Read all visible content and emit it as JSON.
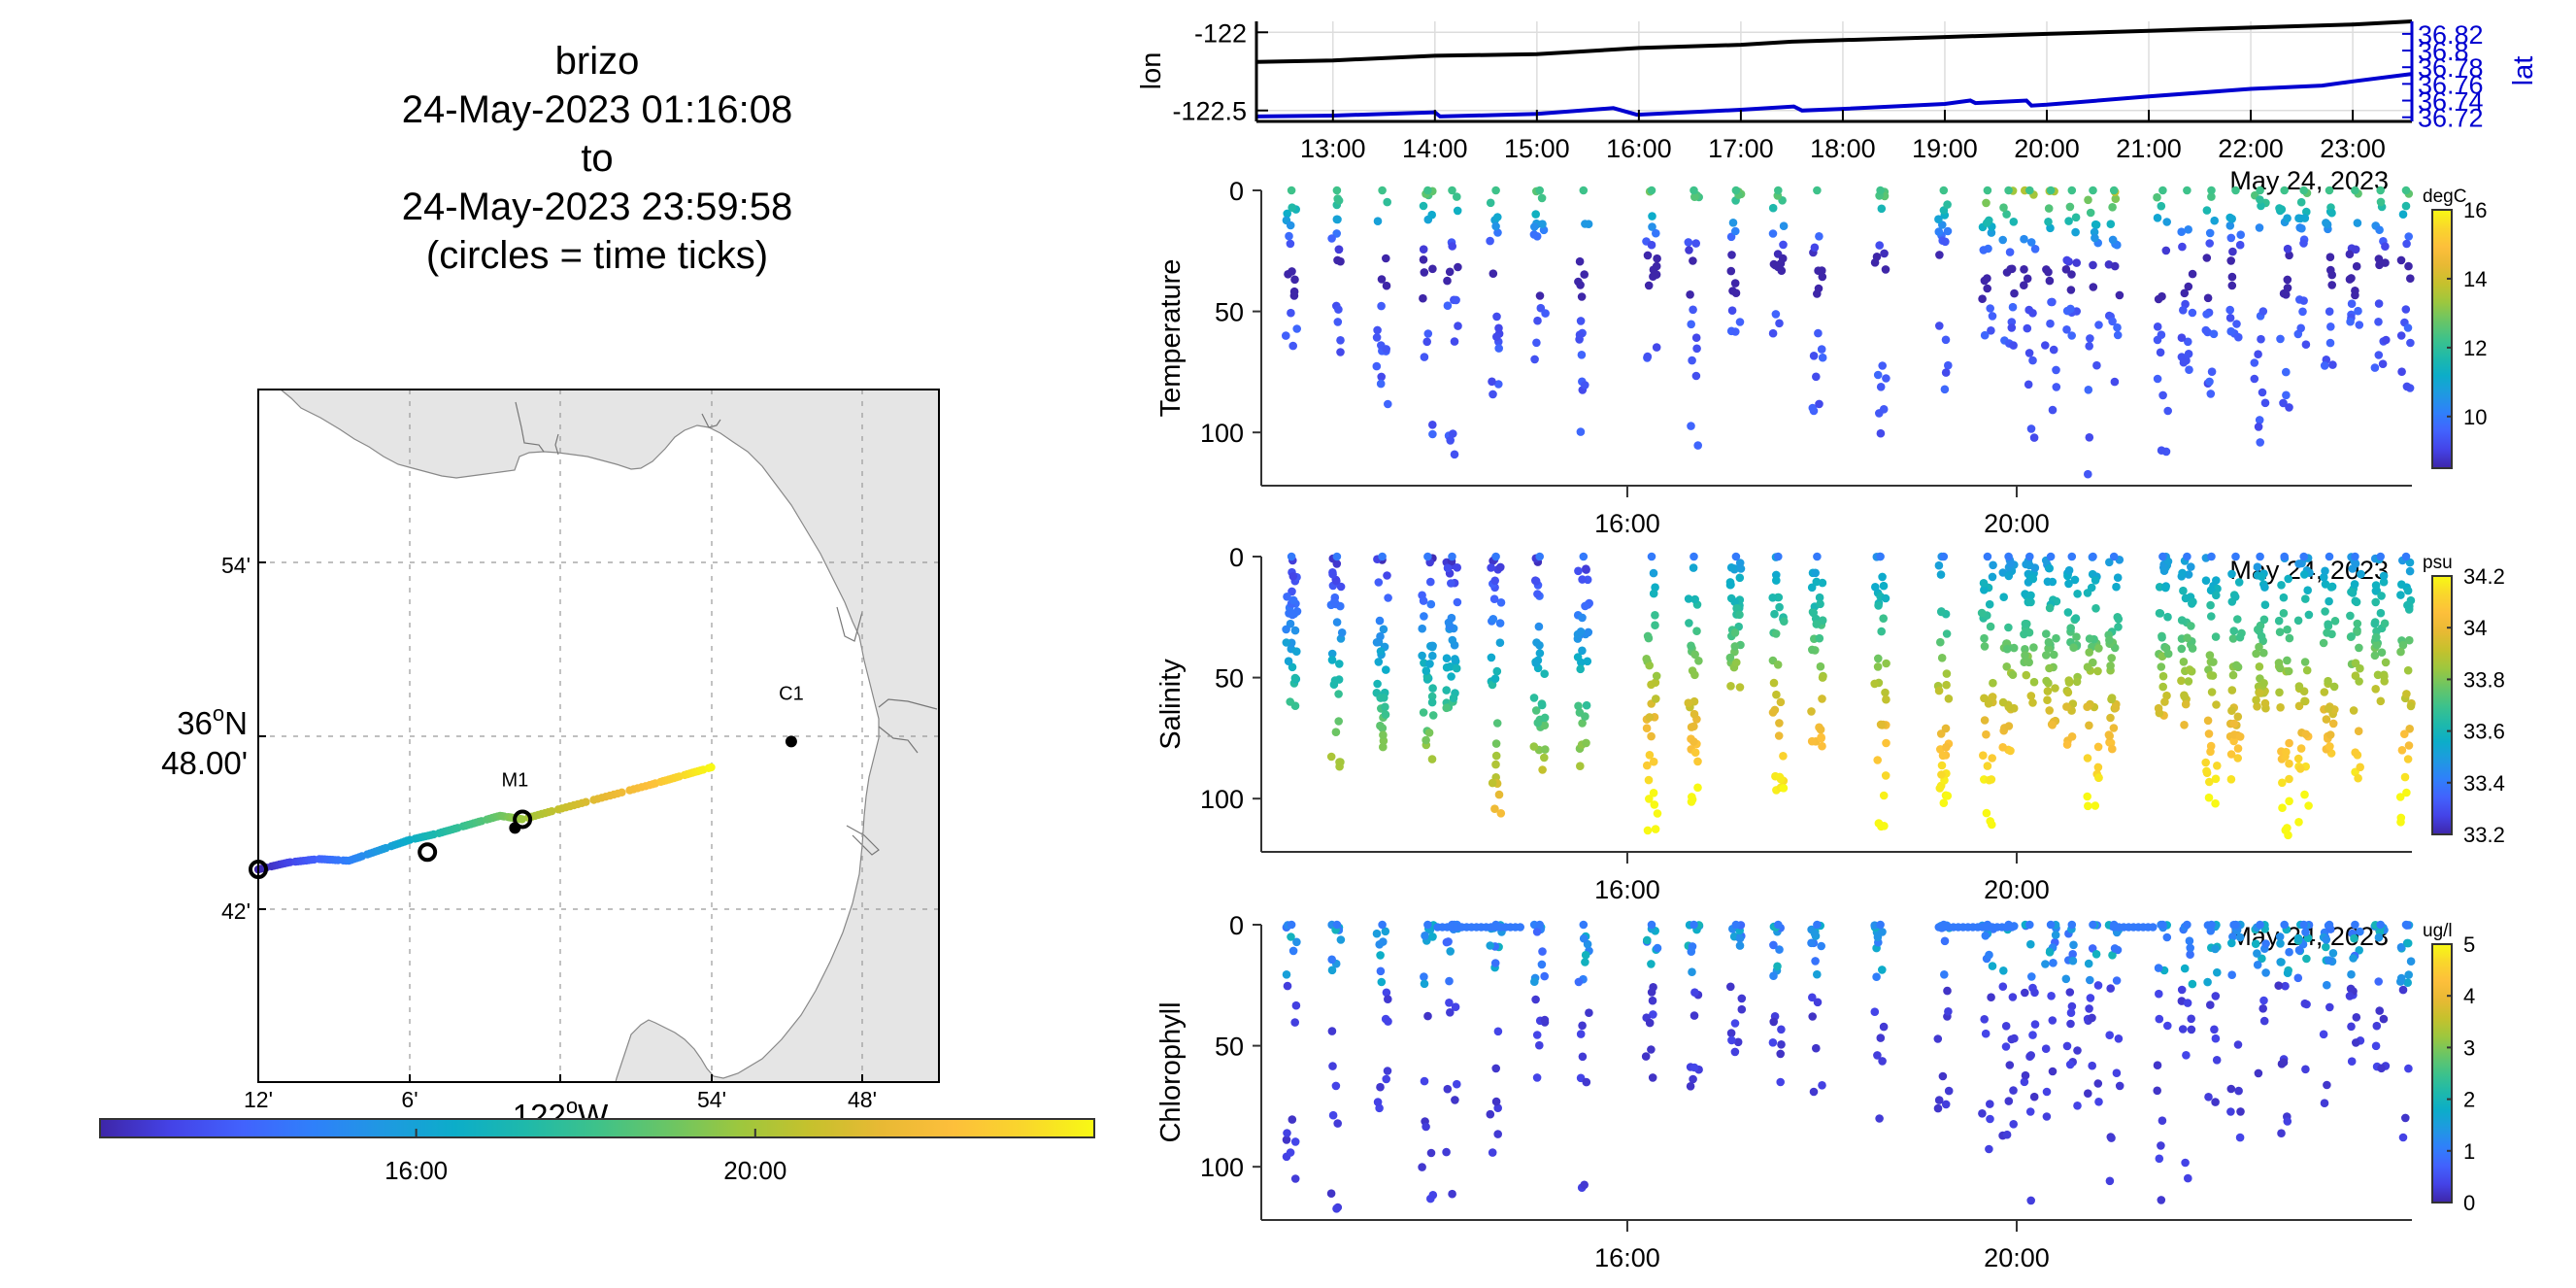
{
  "title": {
    "lines": [
      "brizo",
      "24-May-2023 01:16:08",
      "to",
      "24-May-2023 23:59:58",
      "(circles = time ticks)"
    ]
  },
  "colors": {
    "parula": [
      "#3e26a8",
      "#4443e7",
      "#4262fd",
      "#2f80fa",
      "#1f99e1",
      "#0cadc9",
      "#1fb9aa",
      "#3ec28a",
      "#6ac565",
      "#9dc73e",
      "#c6c12d",
      "#e8b934",
      "#fdbf3b",
      "#f9d62c",
      "#f8f914"
    ],
    "lon_line": "#000000",
    "lat_line": "#0000d0",
    "land": "#e5e5e5",
    "grid": "#aaaaaa"
  },
  "map": {
    "lon_ticks": [
      "12'",
      "6'",
      "54'",
      "48'"
    ],
    "lon_label_main": "122",
    "lon_label_sup": "o",
    "lon_label_suffix": "W",
    "lat_ticks": [
      "54'",
      "42'"
    ],
    "lat_label_main": "36",
    "lat_label_sup": "o",
    "lat_label_suffix": "N",
    "lat_label_sub": "48.00'",
    "stations": [
      {
        "name": "M1",
        "lon": -122.03,
        "lat": 36.747
      },
      {
        "name": "C1",
        "lon": -121.847,
        "lat": 36.797
      }
    ],
    "colorbar_ticks": [
      "16:00",
      "20:00"
    ],
    "colorbar_range_hours": [
      12.27,
      24.0
    ],
    "colorbar_tick_hours": [
      16,
      20
    ]
  },
  "chart_data": [
    {
      "type": "line",
      "title": "",
      "xlabel": "",
      "ylabel": "lon",
      "ylabel_right": "lat",
      "date_label": "May 24, 2023",
      "x_tick_labels": [
        "13:00",
        "14:00",
        "15:00",
        "16:00",
        "17:00",
        "18:00",
        "19:00",
        "20:00",
        "21:00",
        "22:00",
        "23:00"
      ],
      "x_range_hours": [
        12.25,
        23.58
      ],
      "ylim": [
        -122.57,
        -121.93
      ],
      "y_ticks": [
        -122,
        -122.5
      ],
      "y_tick_labels": [
        "-122",
        "-122.5"
      ],
      "ylim_right": [
        36.715,
        36.835
      ],
      "y_ticks_right": [
        36.72,
        36.74,
        36.76,
        36.78,
        36.8,
        36.82
      ],
      "y_tick_labels_right": [
        "36.72",
        "36.74",
        "36.76",
        "36.78",
        "36.8",
        "36.82"
      ],
      "grid": true,
      "series": [
        {
          "name": "lon",
          "axis": "left",
          "x": [
            12.25,
            13.0,
            14.0,
            15.0,
            15.75,
            16.0,
            17.0,
            17.5,
            18.0,
            19.0,
            20.0,
            21.0,
            21.5,
            22.0,
            23.0,
            23.58
          ],
          "y": [
            -122.19,
            -122.18,
            -122.15,
            -122.14,
            -122.11,
            -122.1,
            -122.08,
            -122.06,
            -122.05,
            -122.03,
            -122.01,
            -121.99,
            -121.98,
            -121.97,
            -121.95,
            -121.93
          ]
        },
        {
          "name": "lat",
          "axis": "right",
          "x": [
            12.25,
            13.0,
            14.0,
            14.05,
            15.0,
            15.75,
            15.98,
            17.0,
            17.52,
            17.6,
            18.0,
            19.0,
            19.25,
            19.3,
            19.8,
            19.85,
            20.0,
            21.0,
            22.0,
            22.7,
            23.0,
            23.58
          ],
          "y": [
            36.721,
            36.722,
            36.726,
            36.721,
            36.724,
            36.731,
            36.723,
            36.729,
            36.733,
            36.728,
            36.73,
            36.736,
            36.74,
            36.737,
            36.74,
            36.734,
            36.735,
            36.745,
            36.754,
            36.758,
            36.763,
            36.772
          ]
        }
      ]
    },
    {
      "type": "scatter",
      "name": "temperature",
      "ylabel": "Temperature",
      "units": "degC",
      "date_label": "May 24, 2023",
      "x_tick_labels": [
        "16:00",
        "20:00"
      ],
      "x_tick_hours": [
        16,
        20
      ],
      "x_range_hours": [
        12.24,
        24.06
      ],
      "ylim": [
        0,
        122
      ],
      "y_reversed": true,
      "y_ticks": [
        0,
        50,
        100
      ],
      "clim": [
        8.5,
        16
      ],
      "colorbar_ticks": [
        10,
        12,
        14,
        16
      ]
    },
    {
      "type": "scatter",
      "name": "salinity",
      "ylabel": "Salinity",
      "units": "psu",
      "date_label": "May 24, 2023",
      "x_tick_labels": [
        "16:00",
        "20:00"
      ],
      "x_tick_hours": [
        16,
        20
      ],
      "x_range_hours": [
        12.24,
        24.06
      ],
      "ylim": [
        0,
        122
      ],
      "y_reversed": true,
      "y_ticks": [
        0,
        50,
        100
      ],
      "clim": [
        33.2,
        34.2
      ],
      "colorbar_ticks": [
        33.2,
        33.4,
        33.6,
        33.8,
        34,
        34.2
      ]
    },
    {
      "type": "scatter",
      "name": "chlorophyll",
      "ylabel": "Chlorophyll",
      "units": "ug/l",
      "date_label": "May 24, 2023",
      "x_tick_labels": [
        "16:00",
        "20:00"
      ],
      "x_tick_hours": [
        16,
        20
      ],
      "x_range_hours": [
        12.24,
        24.06
      ],
      "ylim": [
        0,
        122
      ],
      "y_reversed": true,
      "y_ticks": [
        0,
        50,
        100
      ],
      "clim": [
        0,
        5
      ],
      "colorbar_ticks": [
        0,
        1,
        2,
        3,
        4,
        5
      ]
    }
  ]
}
